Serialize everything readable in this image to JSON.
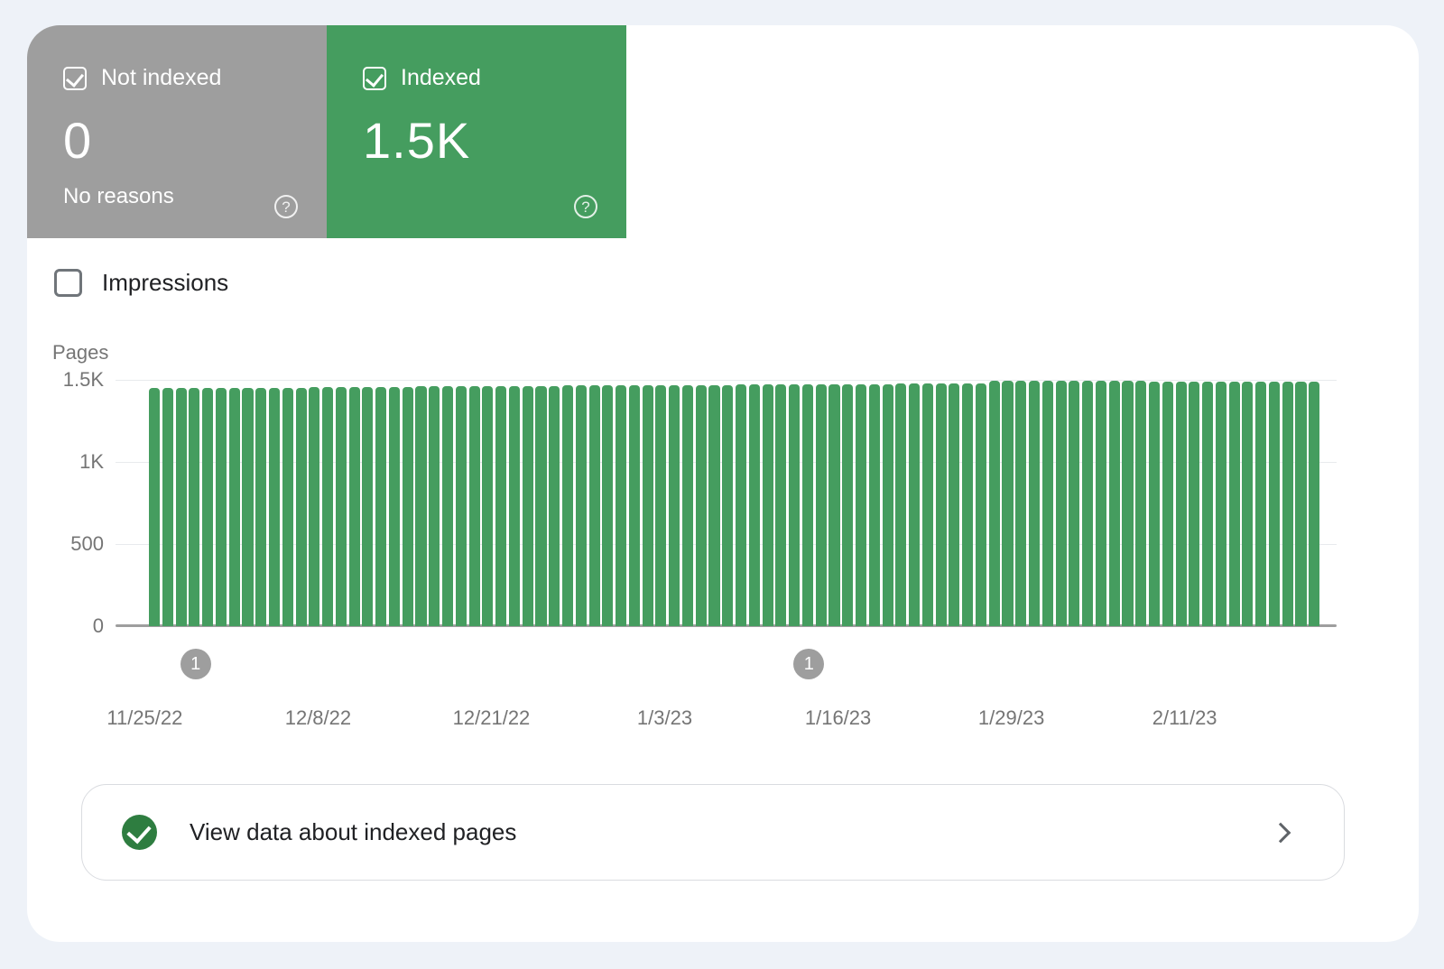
{
  "stats": {
    "not_indexed": {
      "label": "Not indexed",
      "value": "0",
      "sublabel": "No reasons",
      "color": "#9e9e9e",
      "checked": true,
      "help_glyph": "?"
    },
    "indexed": {
      "label": "Indexed",
      "value": "1.5K",
      "color": "#459d5f",
      "checked": true,
      "help_glyph": "?"
    }
  },
  "impressions": {
    "label": "Impressions",
    "checked": false
  },
  "chart_data": {
    "type": "bar",
    "title": "",
    "ylabel": "Pages",
    "ylim": [
      0,
      1500
    ],
    "grid": true,
    "bar_color": "#459d5f",
    "yticks": [
      {
        "v": 1500,
        "label": "1.5K"
      },
      {
        "v": 1000,
        "label": "1K"
      },
      {
        "v": 500,
        "label": "500"
      },
      {
        "v": 0,
        "label": "0"
      }
    ],
    "x_ticks": [
      {
        "day": 0,
        "label": "11/25/22"
      },
      {
        "day": 13,
        "label": "12/8/22"
      },
      {
        "day": 26,
        "label": "12/21/22"
      },
      {
        "day": 39,
        "label": "1/3/23"
      },
      {
        "day": 52,
        "label": "1/16/23"
      },
      {
        "day": 65,
        "label": "1/29/23"
      },
      {
        "day": 78,
        "label": "2/11/23"
      }
    ],
    "values": [
      1450,
      1450,
      1450,
      1450,
      1450,
      1450,
      1450,
      1450,
      1450,
      1450,
      1450,
      1450,
      1456,
      1456,
      1456,
      1456,
      1456,
      1456,
      1456,
      1456,
      1462,
      1462,
      1462,
      1462,
      1462,
      1462,
      1462,
      1462,
      1462,
      1462,
      1462,
      1468,
      1468,
      1468,
      1468,
      1468,
      1468,
      1468,
      1468,
      1468,
      1468,
      1468,
      1468,
      1468,
      1472,
      1472,
      1472,
      1472,
      1472,
      1472,
      1472,
      1472,
      1472,
      1472,
      1472,
      1472,
      1476,
      1476,
      1476,
      1476,
      1476,
      1476,
      1476,
      1494,
      1494,
      1494,
      1494,
      1494,
      1494,
      1494,
      1494,
      1494,
      1494,
      1494,
      1494,
      1488,
      1488,
      1488,
      1488,
      1488,
      1488,
      1488,
      1488,
      1488,
      1488,
      1488,
      1488,
      1488
    ],
    "annotations": [
      {
        "day": 3,
        "label": "1"
      },
      {
        "day": 49,
        "label": "1"
      }
    ]
  },
  "cta": {
    "label": "View data about indexed pages"
  }
}
